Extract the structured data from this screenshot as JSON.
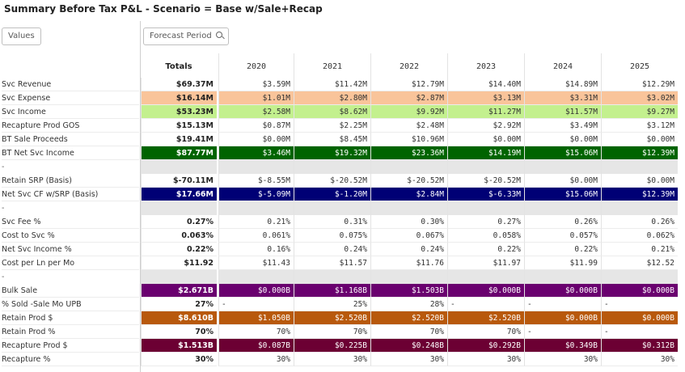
{
  "title": "Summary Before Tax P&L - Scenario = Base w/Sale+Recap",
  "row_dimension_label": "Values",
  "column_dimension_label": "Forecast Period",
  "columns": [
    "Totals",
    "2020",
    "2021",
    "2022",
    "2023",
    "2024",
    "2025"
  ],
  "rows": [
    {
      "label": "Svc Revenue",
      "style": "plain",
      "total": "$69.37M",
      "values": [
        "$3.59M",
        "$11.42M",
        "$12.79M",
        "$14.40M",
        "$14.89M",
        "$12.29M"
      ]
    },
    {
      "label": "Svc Expense",
      "style": "orange",
      "total": "$16.14M",
      "values": [
        "$1.01M",
        "$2.80M",
        "$2.87M",
        "$3.13M",
        "$3.31M",
        "$3.02M"
      ]
    },
    {
      "label": "Svc Income",
      "style": "lime",
      "total": "$53.23M",
      "values": [
        "$2.58M",
        "$8.62M",
        "$9.92M",
        "$11.27M",
        "$11.57M",
        "$9.27M"
      ]
    },
    {
      "label": "Recapture Prod GOS",
      "style": "plain",
      "total": "$15.13M",
      "values": [
        "$0.87M",
        "$2.25M",
        "$2.48M",
        "$2.92M",
        "$3.49M",
        "$3.12M"
      ]
    },
    {
      "label": "BT Sale Proceeds",
      "style": "plain",
      "total": "$19.41M",
      "values": [
        "$0.00M",
        "$8.45M",
        "$10.96M",
        "$0.00M",
        "$0.00M",
        "$0.00M"
      ]
    },
    {
      "label": "BT Net Svc Income",
      "style": "dkgreen",
      "total": "$87.77M",
      "values": [
        "$3.46M",
        "$19.32M",
        "$23.36M",
        "$14.19M",
        "$15.06M",
        "$12.39M"
      ]
    },
    {
      "label": "-",
      "style": "grey",
      "total": "",
      "values": [
        "",
        "",
        "",
        "",
        "",
        ""
      ]
    },
    {
      "label": "Retain SRP (Basis)",
      "style": "plain",
      "total": "$-70.11M",
      "values": [
        "$-8.55M",
        "$-20.52M",
        "$-20.52M",
        "$-20.52M",
        "$0.00M",
        "$0.00M"
      ]
    },
    {
      "label": "Net Svc CF w/SRP (Basis)",
      "style": "navy",
      "total": "$17.66M",
      "values": [
        "$-5.09M",
        "$-1.20M",
        "$2.84M",
        "$-6.33M",
        "$15.06M",
        "$12.39M"
      ]
    },
    {
      "label": "-",
      "style": "grey",
      "total": "",
      "values": [
        "",
        "",
        "",
        "",
        "",
        ""
      ]
    },
    {
      "label": "Svc Fee %",
      "style": "plain",
      "total": "0.27%",
      "values": [
        "0.21%",
        "0.31%",
        "0.30%",
        "0.27%",
        "0.26%",
        "0.26%"
      ]
    },
    {
      "label": "Cost to Svc %",
      "style": "plain",
      "total": "0.063%",
      "values": [
        "0.061%",
        "0.075%",
        "0.067%",
        "0.058%",
        "0.057%",
        "0.062%"
      ]
    },
    {
      "label": "Net Svc Income %",
      "style": "plain",
      "total": "0.22%",
      "values": [
        "0.16%",
        "0.24%",
        "0.24%",
        "0.22%",
        "0.22%",
        "0.21%"
      ]
    },
    {
      "label": "Cost per Ln per Mo",
      "style": "plain",
      "total": "$11.92",
      "values": [
        "$11.43",
        "$11.57",
        "$11.76",
        "$11.97",
        "$11.99",
        "$12.52"
      ]
    },
    {
      "label": "-",
      "style": "grey",
      "total": "",
      "values": [
        "",
        "",
        "",
        "",
        "",
        ""
      ]
    },
    {
      "label": "Bulk Sale",
      "style": "purple",
      "total": "$2.671B",
      "values": [
        "$0.000B",
        "$1.168B",
        "$1.503B",
        "$0.000B",
        "$0.000B",
        "$0.000B"
      ]
    },
    {
      "label": "% Sold -Sale Mo UPB",
      "style": "plain",
      "total": "27%",
      "values": [
        "-",
        "25%",
        "28%",
        "-",
        "-",
        "-"
      ]
    },
    {
      "label": "Retain Prod $",
      "style": "brown",
      "total": "$8.610B",
      "values": [
        "$1.050B",
        "$2.520B",
        "$2.520B",
        "$2.520B",
        "$0.000B",
        "$0.000B"
      ]
    },
    {
      "label": "Retain Prod %",
      "style": "plain",
      "total": "70%",
      "values": [
        "70%",
        "70%",
        "70%",
        "70%",
        "-",
        "-"
      ]
    },
    {
      "label": "Recapture Prod $",
      "style": "maroon",
      "total": "$1.513B",
      "values": [
        "$0.087B",
        "$0.225B",
        "$0.248B",
        "$0.292B",
        "$0.349B",
        "$0.312B"
      ]
    },
    {
      "label": "Recapture %",
      "style": "plain",
      "total": "30%",
      "values": [
        "30%",
        "30%",
        "30%",
        "30%",
        "30%",
        "30%"
      ]
    }
  ],
  "colors": {
    "orange": "#f9c49a",
    "lime": "#c3f08e",
    "dkgreen": "#006400",
    "navy": "#000075",
    "purple": "#6a006f",
    "brown": "#b8590c",
    "maroon": "#6c0033",
    "grey_band": "#e6e6e6"
  }
}
